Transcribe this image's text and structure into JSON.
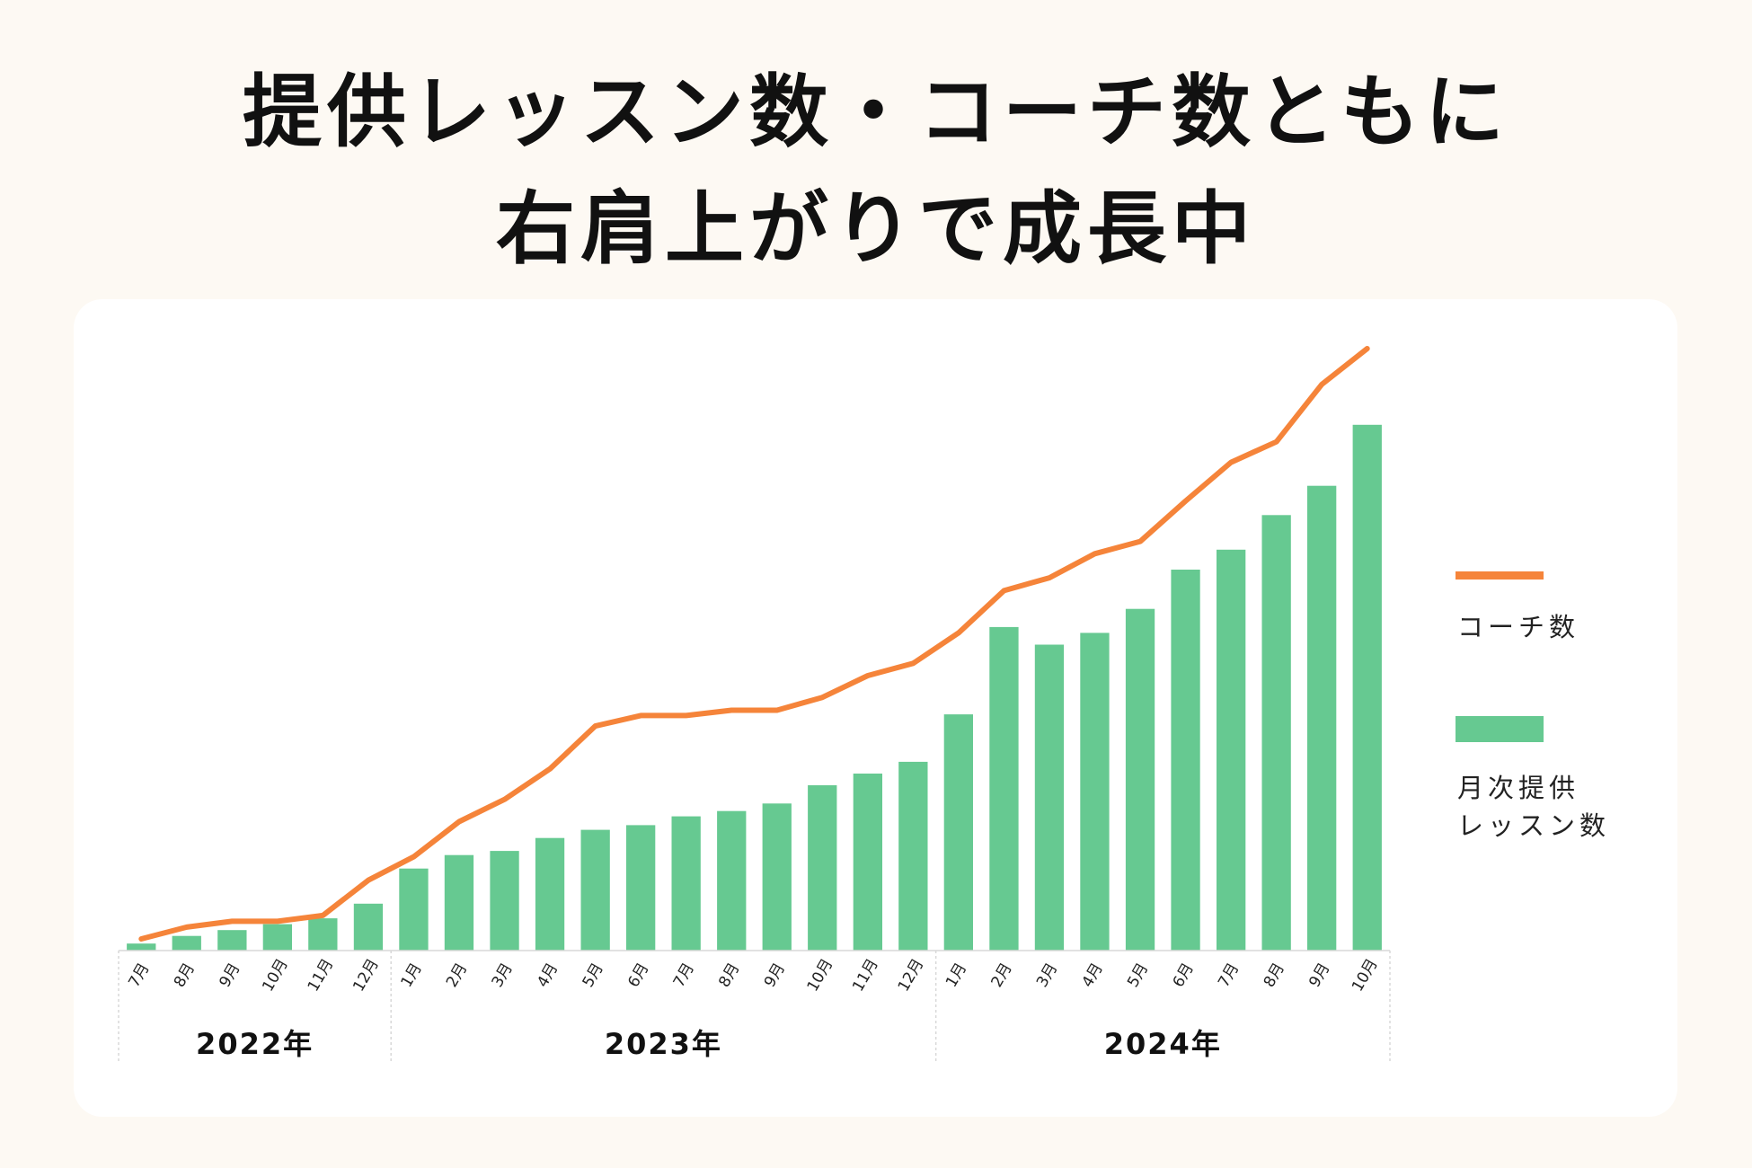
{
  "title": {
    "line1": "提供レッスン数・コーチ数ともに",
    "line2": "右肩上がりで成長中"
  },
  "colors": {
    "background": "#fdf9f3",
    "card": "#ffffff",
    "bar": "#66c991",
    "line": "#f5843a",
    "axis": "#d8d8d8",
    "text": "#111111"
  },
  "legend": {
    "line_label": "コーチ数",
    "bar_label": "月次提供\nレッスン数",
    "placement": "right"
  },
  "chart_data": {
    "type": "bar",
    "categories": [
      "7月",
      "8月",
      "9月",
      "10月",
      "11月",
      "12月",
      "1月",
      "2月",
      "3月",
      "4月",
      "5月",
      "6月",
      "7月",
      "8月",
      "9月",
      "10月",
      "11月",
      "12月",
      "1月",
      "2月",
      "3月",
      "4月",
      "5月",
      "6月",
      "7月",
      "8月",
      "9月",
      "10月"
    ],
    "year_groups": [
      {
        "label": "2022年",
        "start": 0,
        "end": 5
      },
      {
        "label": "2023年",
        "start": 6,
        "end": 17
      },
      {
        "label": "2024年",
        "start": 18,
        "end": 27
      }
    ],
    "series": [
      {
        "name": "月次提供レッスン数",
        "type": "bar",
        "values": [
          1.2,
          2.5,
          3.5,
          4.5,
          5.5,
          8,
          14,
          16.3,
          17,
          19.2,
          20.6,
          21.4,
          22.9,
          23.8,
          25.1,
          28.2,
          30.2,
          32.2,
          40.3,
          55.2,
          52.2,
          54.2,
          58.3,
          65,
          68.4,
          74.3,
          79.3,
          89.7
        ]
      },
      {
        "name": "コーチ数",
        "type": "line",
        "values": [
          2,
          4,
          5,
          5,
          6,
          12,
          16,
          22,
          25.8,
          31,
          38.3,
          40.1,
          40.1,
          41,
          41,
          43.2,
          46.9,
          49,
          54.2,
          61.4,
          63.6,
          67.7,
          69.8,
          76.7,
          83.3,
          86.8,
          96.6,
          102.7
        ]
      }
    ],
    "ylim": [
      0,
      105
    ],
    "grid": false,
    "xlabel": "",
    "ylabel": ""
  }
}
